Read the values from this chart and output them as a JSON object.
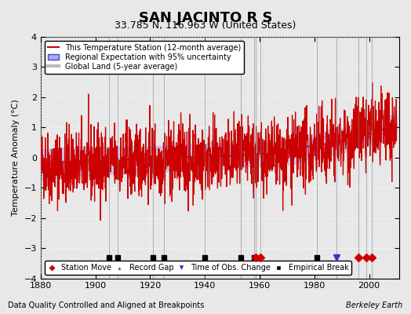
{
  "title": "SAN JACINTO R S",
  "subtitle": "33.785 N, 116.963 W (United States)",
  "ylabel": "Temperature Anomaly (°C)",
  "xlabel_note": "Data Quality Controlled and Aligned at Breakpoints",
  "credit": "Berkeley Earth",
  "xlim": [
    1880,
    2011
  ],
  "ylim": [
    -4,
    4
  ],
  "yticks": [
    -4,
    -3,
    -2,
    -1,
    0,
    1,
    2,
    3,
    4
  ],
  "xticks": [
    1880,
    1900,
    1920,
    1940,
    1960,
    1980,
    2000
  ],
  "bg_color": "#e8e8e8",
  "plot_bg_color": "#e8e8e8",
  "legend_items": [
    {
      "label": "This Temperature Station (12-month average)",
      "color": "#cc0000",
      "lw": 1.5,
      "ls": "-"
    },
    {
      "label": "Regional Expectation with 95% uncertainty",
      "color": "#4444cc",
      "lw": 1.5,
      "ls": "-"
    },
    {
      "label": "Global Land (5-year average)",
      "color": "#aaaaaa",
      "lw": 3,
      "ls": "-"
    }
  ],
  "station_moves": [
    1958.5,
    1960.25,
    1996.0,
    1999.0,
    2001.0
  ],
  "record_gaps": [],
  "time_obs_changes": [
    1988.0
  ],
  "empirical_breaks": [
    1905.0,
    1908.0,
    1921.0,
    1925.0,
    1940.0,
    1953.0,
    1958.0,
    1981.0
  ],
  "vertical_lines": [
    1905.0,
    1908.0,
    1921.0,
    1925.0,
    1940.0,
    1953.0,
    1958.0,
    1958.5,
    1960.25,
    1981.0,
    1988.0,
    1996.0,
    1999.0,
    2001.0
  ]
}
